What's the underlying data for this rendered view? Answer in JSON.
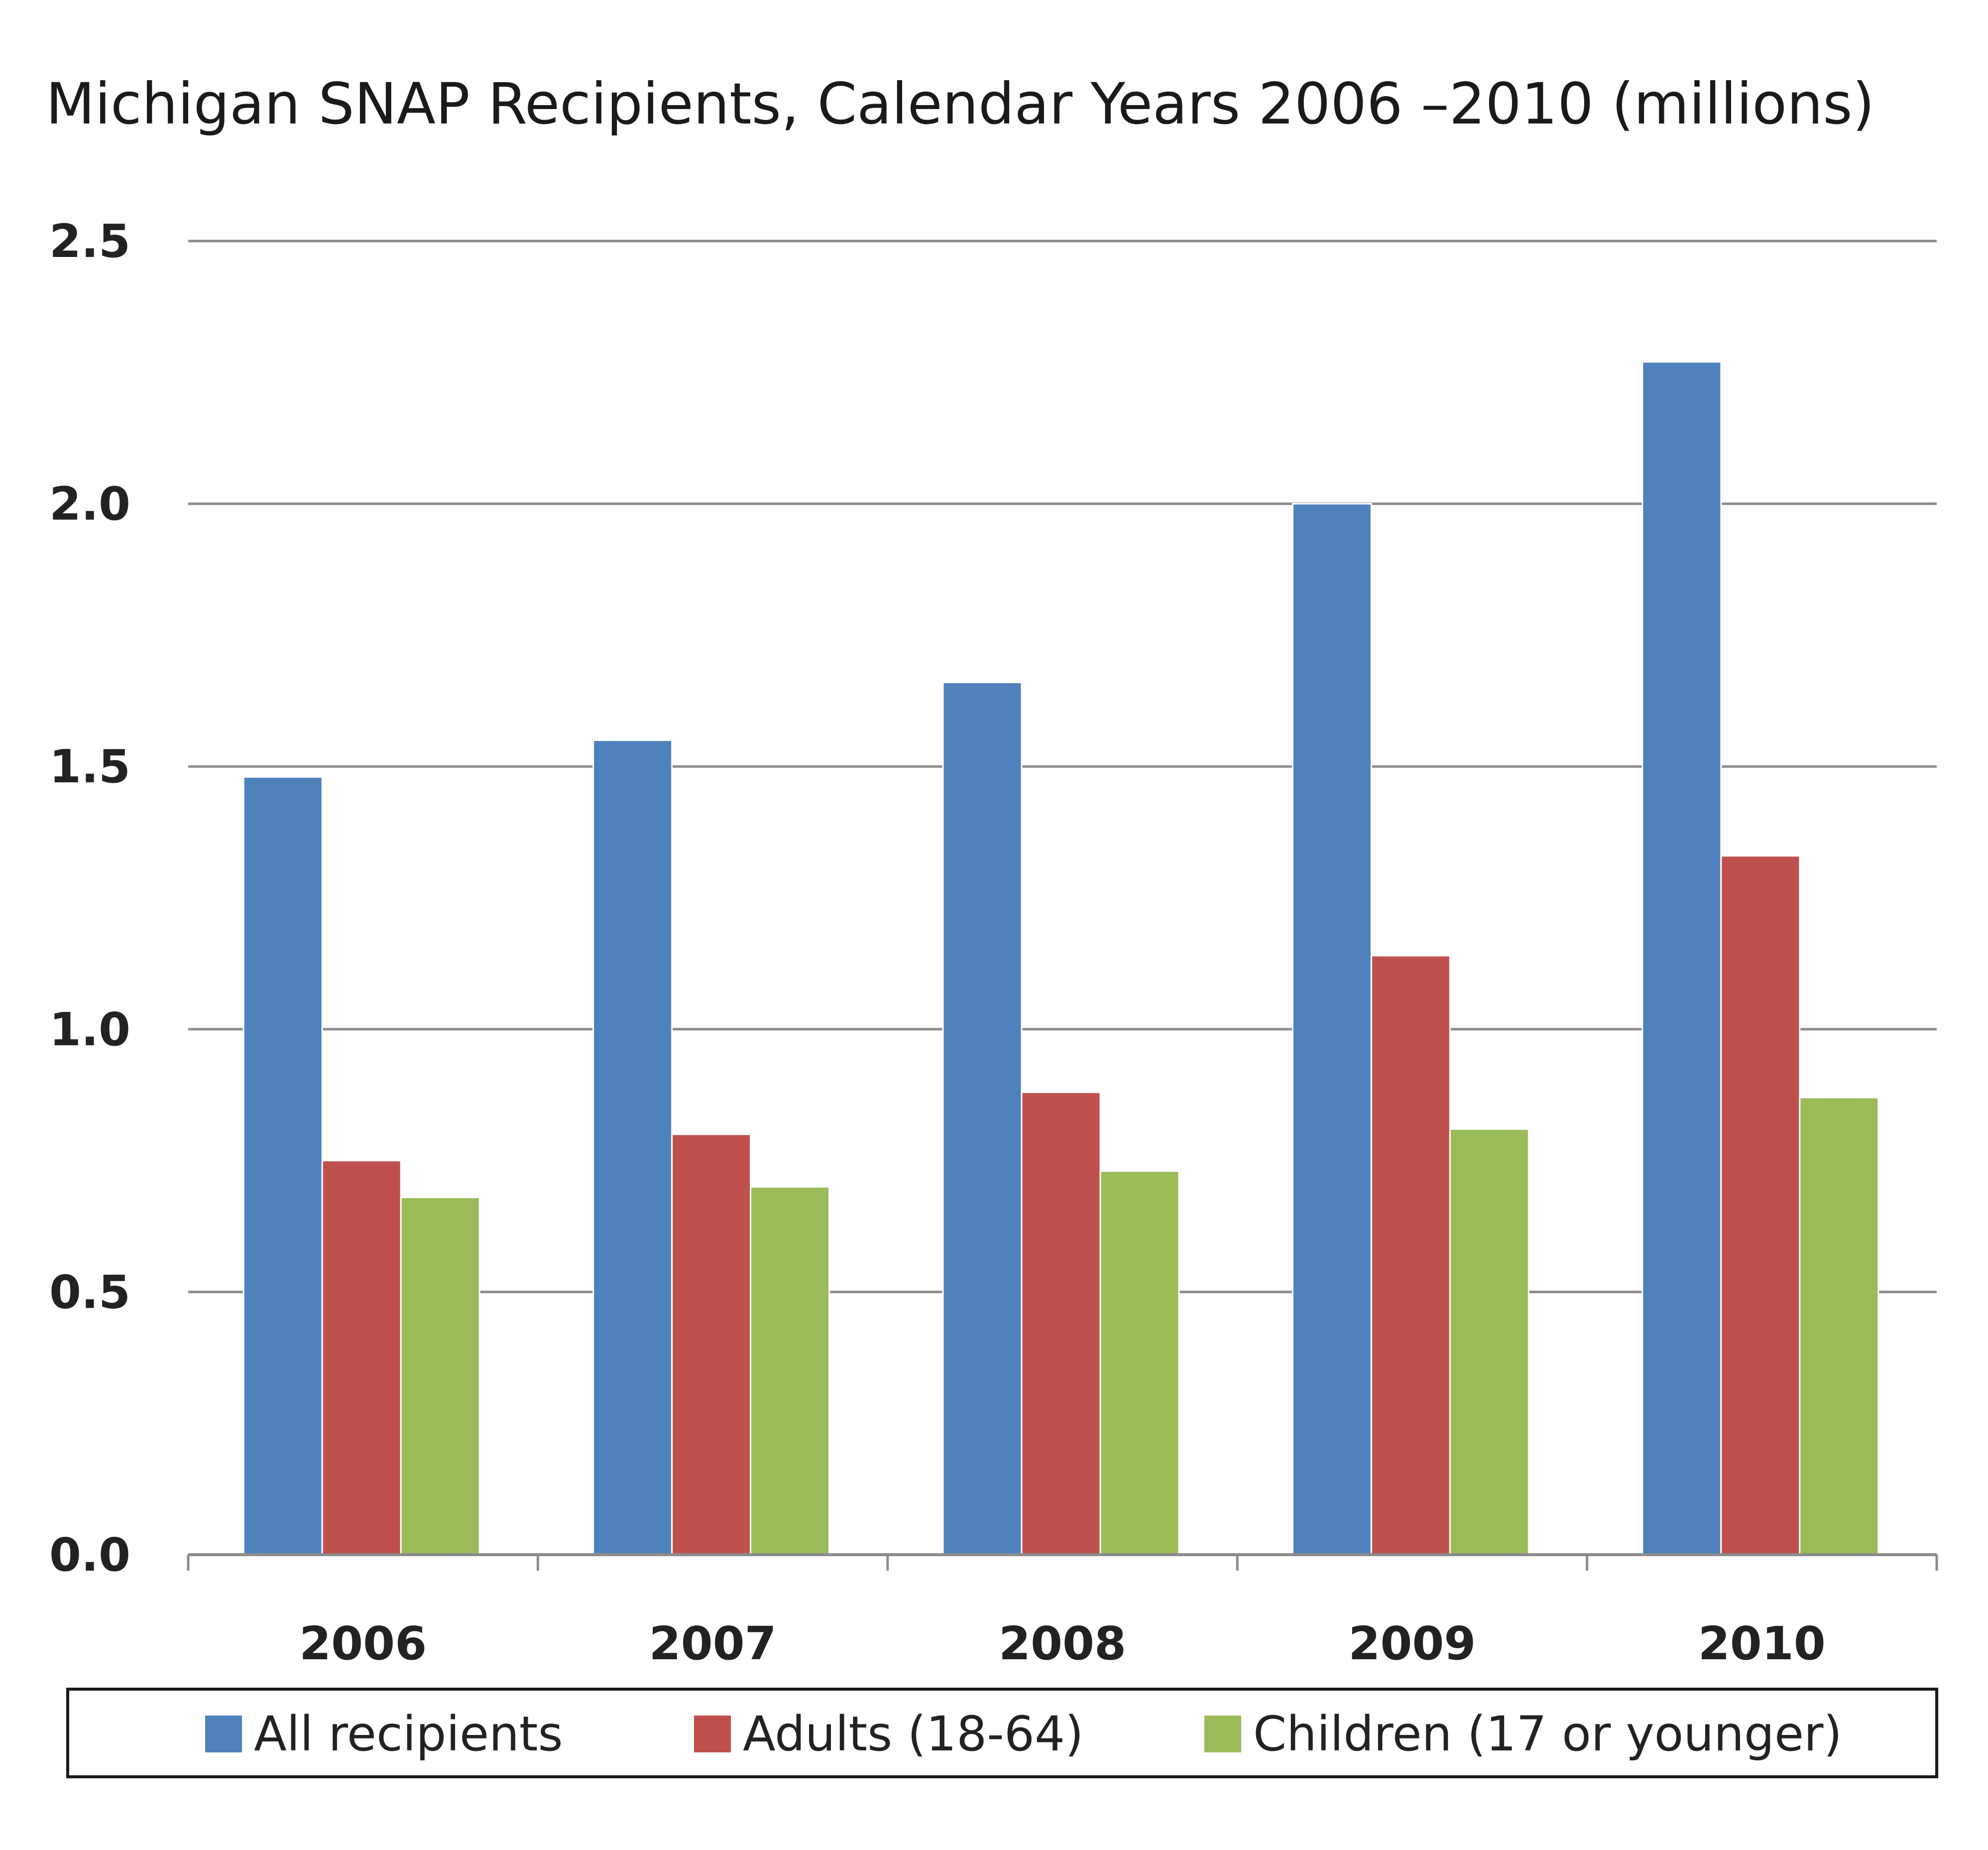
{
  "chart_data": {
    "type": "bar",
    "title": "Michigan SNAP Recipients, Calendar Years 2006 –2010 (millions)",
    "categories": [
      "2006",
      "2007",
      "2008",
      "2009",
      "2010"
    ],
    "series": [
      {
        "name": "All recipients",
        "color": "#4f81bd",
        "values": [
          1.48,
          1.55,
          1.66,
          2.0,
          2.27
        ]
      },
      {
        "name": "Adults (18-64)",
        "color": "#c0504d",
        "values": [
          0.75,
          0.8,
          0.88,
          1.14,
          1.33
        ]
      },
      {
        "name": "Children (17 or younger)",
        "color": "#9bbb59",
        "values": [
          0.68,
          0.7,
          0.73,
          0.81,
          0.87
        ]
      }
    ],
    "yticks": [
      "0.0",
      "0.5",
      "1.0",
      "1.5",
      "2.0",
      "2.5"
    ],
    "ylim": [
      0,
      2.5
    ],
    "grid": true,
    "legend_position": "bottom"
  }
}
